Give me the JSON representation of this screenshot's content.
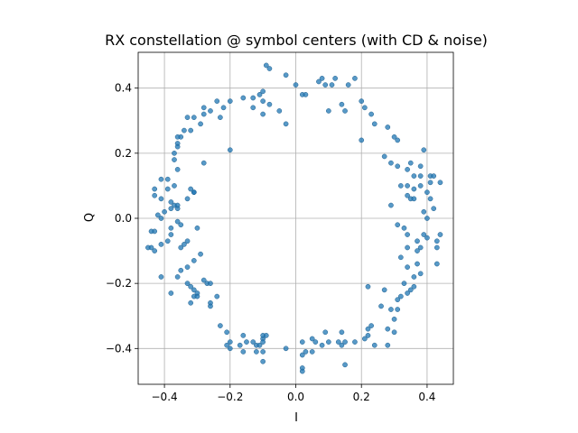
{
  "chart_data": {
    "type": "scatter",
    "title": "RX constellation @ symbol centers (with CD & noise)",
    "xlabel": "I",
    "ylabel": "Q",
    "xlim": [
      -0.48,
      0.48
    ],
    "ylim": [
      -0.51,
      0.51
    ],
    "xticks": [
      -0.4,
      -0.2,
      0.0,
      0.2,
      0.4
    ],
    "yticks": [
      -0.4,
      -0.2,
      0.0,
      0.2,
      0.4
    ],
    "xtick_labels": [
      "−0.4",
      "−0.2",
      "0.0",
      "0.2",
      "0.4"
    ],
    "ytick_labels": [
      "−0.4",
      "−0.2",
      "0.0",
      "0.2",
      "0.4"
    ],
    "grid": true,
    "legend": "none",
    "series": [
      {
        "color": "#1f77b4",
        "points": [
          [
            -0.09,
            0.47
          ],
          [
            -0.08,
            0.46
          ],
          [
            -0.03,
            0.44
          ],
          [
            0.08,
            0.43
          ],
          [
            0.12,
            0.43
          ],
          [
            0.18,
            0.43
          ],
          [
            0.0,
            0.41
          ],
          [
            0.02,
            0.38
          ],
          [
            0.03,
            0.38
          ],
          [
            0.07,
            0.42
          ],
          [
            0.09,
            0.41
          ],
          [
            0.11,
            0.41
          ],
          [
            0.16,
            0.41
          ],
          [
            -0.1,
            0.39
          ],
          [
            -0.11,
            0.38
          ],
          [
            -0.13,
            0.37
          ],
          [
            -0.16,
            0.37
          ],
          [
            -0.2,
            0.36
          ],
          [
            -0.24,
            0.36
          ],
          [
            -0.1,
            0.36
          ],
          [
            -0.08,
            0.35
          ],
          [
            -0.05,
            0.33
          ],
          [
            -0.13,
            0.34
          ],
          [
            -0.22,
            0.34
          ],
          [
            -0.26,
            0.33
          ],
          [
            -0.28,
            0.34
          ],
          [
            -0.28,
            0.32
          ],
          [
            -0.31,
            0.31
          ],
          [
            -0.33,
            0.31
          ],
          [
            -0.23,
            0.31
          ],
          [
            -0.1,
            0.32
          ],
          [
            0.1,
            0.33
          ],
          [
            0.14,
            0.35
          ],
          [
            0.15,
            0.33
          ],
          [
            0.2,
            0.36
          ],
          [
            0.21,
            0.34
          ],
          [
            0.23,
            0.32
          ],
          [
            0.24,
            0.29
          ],
          [
            0.28,
            0.28
          ],
          [
            0.3,
            0.25
          ],
          [
            0.31,
            0.24
          ],
          [
            -0.03,
            0.29
          ],
          [
            -0.29,
            0.29
          ],
          [
            -0.32,
            0.27
          ],
          [
            -0.34,
            0.27
          ],
          [
            -0.35,
            0.25
          ],
          [
            -0.36,
            0.23
          ],
          [
            -0.36,
            0.22
          ],
          [
            -0.36,
            0.25
          ],
          [
            0.2,
            0.24
          ],
          [
            -0.2,
            0.21
          ],
          [
            -0.37,
            0.2
          ],
          [
            -0.37,
            0.18
          ],
          [
            -0.28,
            0.17
          ],
          [
            -0.36,
            0.15
          ],
          [
            0.27,
            0.19
          ],
          [
            0.29,
            0.17
          ],
          [
            0.31,
            0.16
          ],
          [
            0.35,
            0.17
          ],
          [
            0.39,
            0.21
          ],
          [
            0.34,
            0.15
          ],
          [
            0.36,
            0.13
          ],
          [
            0.38,
            0.13
          ],
          [
            0.38,
            0.16
          ],
          [
            0.41,
            0.13
          ],
          [
            0.42,
            0.13
          ],
          [
            0.41,
            0.11
          ],
          [
            0.44,
            0.11
          ],
          [
            0.32,
            0.1
          ],
          [
            0.34,
            0.1
          ],
          [
            0.36,
            0.09
          ],
          [
            0.38,
            0.1
          ],
          [
            0.34,
            0.07
          ],
          [
            0.35,
            0.06
          ],
          [
            0.36,
            0.06
          ],
          [
            0.4,
            0.08
          ],
          [
            0.41,
            0.06
          ],
          [
            0.42,
            0.03
          ],
          [
            -0.41,
            0.12
          ],
          [
            -0.39,
            0.12
          ],
          [
            -0.39,
            0.09
          ],
          [
            -0.37,
            0.1
          ],
          [
            -0.43,
            0.09
          ],
          [
            -0.43,
            0.07
          ],
          [
            -0.41,
            0.06
          ],
          [
            -0.38,
            0.05
          ],
          [
            -0.37,
            0.04
          ],
          [
            -0.36,
            0.03
          ],
          [
            -0.36,
            0.04
          ],
          [
            -0.38,
            0.03
          ],
          [
            -0.32,
            0.09
          ],
          [
            -0.33,
            0.06
          ],
          [
            -0.31,
            0.08
          ],
          [
            -0.31,
            0.08
          ],
          [
            -0.4,
            0.02
          ],
          [
            -0.42,
            0.01
          ],
          [
            -0.41,
            0.0
          ],
          [
            0.39,
            0.02
          ],
          [
            0.4,
            0.0
          ],
          [
            0.29,
            0.04
          ],
          [
            -0.3,
            -0.03
          ],
          [
            -0.36,
            -0.01
          ],
          [
            -0.35,
            -0.02
          ],
          [
            -0.38,
            -0.03
          ],
          [
            -0.38,
            -0.05
          ],
          [
            -0.43,
            -0.04
          ],
          [
            -0.44,
            -0.04
          ],
          [
            -0.39,
            -0.07
          ],
          [
            -0.41,
            -0.08
          ],
          [
            -0.45,
            -0.09
          ],
          [
            -0.44,
            -0.09
          ],
          [
            -0.43,
            -0.1
          ],
          [
            -0.33,
            -0.07
          ],
          [
            -0.34,
            -0.08
          ],
          [
            -0.35,
            -0.09
          ],
          [
            0.31,
            -0.02
          ],
          [
            0.33,
            -0.03
          ],
          [
            0.34,
            -0.05
          ],
          [
            0.39,
            -0.05
          ],
          [
            0.4,
            -0.06
          ],
          [
            0.44,
            -0.05
          ],
          [
            0.37,
            -0.07
          ],
          [
            0.38,
            -0.09
          ],
          [
            0.43,
            -0.07
          ],
          [
            0.43,
            -0.09
          ],
          [
            0.34,
            -0.09
          ],
          [
            0.37,
            -0.1
          ],
          [
            0.32,
            -0.12
          ],
          [
            0.34,
            -0.15
          ],
          [
            0.37,
            -0.14
          ],
          [
            0.43,
            -0.14
          ],
          [
            0.38,
            -0.17
          ],
          [
            0.36,
            -0.18
          ],
          [
            0.33,
            -0.2
          ],
          [
            -0.31,
            -0.13
          ],
          [
            -0.33,
            -0.15
          ],
          [
            -0.35,
            -0.16
          ],
          [
            -0.36,
            -0.18
          ],
          [
            -0.41,
            -0.18
          ],
          [
            -0.29,
            -0.11
          ],
          [
            -0.28,
            -0.19
          ],
          [
            -0.27,
            -0.2
          ],
          [
            -0.26,
            -0.2
          ],
          [
            -0.33,
            -0.2
          ],
          [
            -0.32,
            -0.21
          ],
          [
            -0.31,
            -0.22
          ],
          [
            -0.3,
            -0.23
          ],
          [
            -0.31,
            -0.24
          ],
          [
            -0.3,
            -0.24
          ],
          [
            -0.38,
            -0.23
          ],
          [
            -0.32,
            -0.26
          ],
          [
            -0.26,
            -0.26
          ],
          [
            -0.26,
            -0.27
          ],
          [
            -0.24,
            -0.24
          ],
          [
            0.36,
            -0.21
          ],
          [
            0.35,
            -0.22
          ],
          [
            0.34,
            -0.23
          ],
          [
            0.32,
            -0.24
          ],
          [
            0.31,
            -0.25
          ],
          [
            0.27,
            -0.22
          ],
          [
            0.22,
            -0.21
          ],
          [
            0.26,
            -0.27
          ],
          [
            0.29,
            -0.28
          ],
          [
            0.31,
            -0.28
          ],
          [
            0.3,
            -0.31
          ],
          [
            0.28,
            -0.34
          ],
          [
            0.3,
            -0.35
          ],
          [
            0.28,
            -0.39
          ],
          [
            -0.23,
            -0.33
          ],
          [
            -0.21,
            -0.35
          ],
          [
            -0.2,
            -0.38
          ],
          [
            -0.21,
            -0.39
          ],
          [
            -0.2,
            -0.4
          ],
          [
            -0.17,
            -0.39
          ],
          [
            -0.16,
            -0.36
          ],
          [
            -0.15,
            -0.38
          ],
          [
            -0.13,
            -0.38
          ],
          [
            -0.16,
            -0.41
          ],
          [
            -0.12,
            -0.39
          ],
          [
            -0.11,
            -0.39
          ],
          [
            -0.1,
            -0.37
          ],
          [
            -0.1,
            -0.36
          ],
          [
            -0.1,
            -0.38
          ],
          [
            -0.09,
            -0.36
          ],
          [
            -0.12,
            -0.41
          ],
          [
            -0.1,
            -0.41
          ],
          [
            -0.1,
            -0.44
          ],
          [
            -0.03,
            -0.4
          ],
          [
            0.02,
            -0.38
          ],
          [
            0.05,
            -0.37
          ],
          [
            0.06,
            -0.38
          ],
          [
            0.08,
            -0.39
          ],
          [
            0.1,
            -0.38
          ],
          [
            0.13,
            -0.38
          ],
          [
            0.14,
            -0.39
          ],
          [
            0.15,
            -0.38
          ],
          [
            0.18,
            -0.38
          ],
          [
            0.21,
            -0.37
          ],
          [
            0.22,
            -0.34
          ],
          [
            0.23,
            -0.33
          ],
          [
            0.24,
            -0.39
          ],
          [
            0.14,
            -0.35
          ],
          [
            0.09,
            -0.35
          ],
          [
            0.15,
            -0.45
          ],
          [
            0.05,
            -0.41
          ],
          [
            0.03,
            -0.41
          ],
          [
            0.02,
            -0.42
          ],
          [
            0.02,
            -0.46
          ],
          [
            0.02,
            -0.47
          ],
          [
            0.22,
            -0.36
          ]
        ]
      }
    ]
  }
}
